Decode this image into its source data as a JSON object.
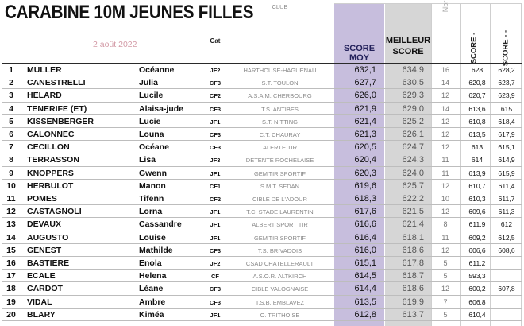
{
  "title": "CARABINE 10M JEUNES FILLES",
  "date": "2 août 2022",
  "headers": {
    "cat": "Cat",
    "club": "CLUB",
    "score_moy": "SCORE MOY",
    "meilleur_1": "MEILLEUR",
    "meilleur_2": "SCORE",
    "nbr": "Nbr",
    "score_minus": "SCORE -",
    "score_minus_minus": "SCORE - -"
  },
  "rows": [
    {
      "rank": "1",
      "nom": "MULLER",
      "prenom": "Océanne",
      "cat": "JF2",
      "club": "HARTHOUSE-HAGUENAU",
      "score_moy": "632,1",
      "best": "634,9",
      "nbr": "16",
      "s1": "628",
      "s2": "628,2"
    },
    {
      "rank": "2",
      "nom": "CANESTRELLI",
      "prenom": "Julia",
      "cat": "CF3",
      "club": "S.T. TOULON",
      "score_moy": "627,7",
      "best": "630,5",
      "nbr": "14",
      "s1": "620,8",
      "s2": "623,7"
    },
    {
      "rank": "3",
      "nom": "HELARD",
      "prenom": "Lucile",
      "cat": "CF2",
      "club": "A.S.A.M. CHERBOURG",
      "score_moy": "626,0",
      "best": "629,3",
      "nbr": "12",
      "s1": "620,7",
      "s2": "623,9"
    },
    {
      "rank": "4",
      "nom": "TENERIFE (ET)",
      "prenom": "Alaisa-jude",
      "cat": "CF3",
      "club": "T.S. ANTIBES",
      "score_moy": "621,9",
      "best": "629,0",
      "nbr": "14",
      "s1": "613,6",
      "s2": "615"
    },
    {
      "rank": "5",
      "nom": "KISSENBERGER",
      "prenom": "Lucie",
      "cat": "JF1",
      "club": "S.T. NITTING",
      "score_moy": "621,4",
      "best": "625,2",
      "nbr": "12",
      "s1": "610,8",
      "s2": "618,4"
    },
    {
      "rank": "6",
      "nom": "CALONNEC",
      "prenom": "Louna",
      "cat": "CF3",
      "club": "C.T. CHAURAY",
      "score_moy": "621,3",
      "best": "626,1",
      "nbr": "12",
      "s1": "613,5",
      "s2": "617,9"
    },
    {
      "rank": "7",
      "nom": "CECILLON",
      "prenom": "Océane",
      "cat": "CF3",
      "club": "ALERTE TIR",
      "score_moy": "620,5",
      "best": "624,7",
      "nbr": "12",
      "s1": "613",
      "s2": "615,1"
    },
    {
      "rank": "8",
      "nom": "TERRASSON",
      "prenom": "Lisa",
      "cat": "JF3",
      "club": "DETENTE ROCHELAISE",
      "score_moy": "620,4",
      "best": "624,3",
      "nbr": "11",
      "s1": "614",
      "s2": "614,9"
    },
    {
      "rank": "9",
      "nom": "KNOPPERS",
      "prenom": "Gwenn",
      "cat": "JF1",
      "club": "GEM'TIR SPORTIF",
      "score_moy": "620,3",
      "best": "624,0",
      "nbr": "11",
      "s1": "613,9",
      "s2": "615,9"
    },
    {
      "rank": "10",
      "nom": "HERBULOT",
      "prenom": "Manon",
      "cat": "CF1",
      "club": "S.M.T. SEDAN",
      "score_moy": "619,6",
      "best": "625,7",
      "nbr": "12",
      "s1": "610,7",
      "s2": "611,4"
    },
    {
      "rank": "11",
      "nom": "POMES",
      "prenom": "Tifenn",
      "cat": "CF2",
      "club": "CIBLE DE L'ADOUR",
      "score_moy": "618,3",
      "best": "622,2",
      "nbr": "10",
      "s1": "610,3",
      "s2": "611,7"
    },
    {
      "rank": "12",
      "nom": "CASTAGNOLI",
      "prenom": "Lorna",
      "cat": "JF1",
      "club": "T.C. STADE LAURENTIN",
      "score_moy": "617,6",
      "best": "621,5",
      "nbr": "12",
      "s1": "609,6",
      "s2": "611,3"
    },
    {
      "rank": "13",
      "nom": "DEVAUX",
      "prenom": "Cassandre",
      "cat": "JF1",
      "club": "ALBERT SPORT TIR",
      "score_moy": "616,6",
      "best": "621,4",
      "nbr": "8",
      "s1": "611,9",
      "s2": "612"
    },
    {
      "rank": "14",
      "nom": "AUGUSTO",
      "prenom": "Louise",
      "cat": "JF1",
      "club": "GEM'TIR SPORTIF",
      "score_moy": "616,4",
      "best": "618,1",
      "nbr": "11",
      "s1": "609,2",
      "s2": "612,5"
    },
    {
      "rank": "15",
      "nom": "GENEST",
      "prenom": "Mathilde",
      "cat": "CF3",
      "club": "T.S. BRIVADOIS",
      "score_moy": "616,0",
      "best": "618,6",
      "nbr": "12",
      "s1": "606,6",
      "s2": "608,6"
    },
    {
      "rank": "16",
      "nom": "BASTIERE",
      "prenom": "Enola",
      "cat": "JF2",
      "club": "CSAD CHATELLERAULT",
      "score_moy": "615,1",
      "best": "617,8",
      "nbr": "5",
      "s1": "611,2",
      "s2": ""
    },
    {
      "rank": "17",
      "nom": "ECALE",
      "prenom": "Helena",
      "cat": "CF",
      "club": "A.S.O.R. ALTKIRCH",
      "score_moy": "614,5",
      "best": "618,7",
      "nbr": "5",
      "s1": "593,3",
      "s2": ""
    },
    {
      "rank": "18",
      "nom": "CARDOT",
      "prenom": "Léane",
      "cat": "CF3",
      "club": "CIBLE VALOGNAISE",
      "score_moy": "614,4",
      "best": "618,6",
      "nbr": "12",
      "s1": "600,2",
      "s2": "607,8"
    },
    {
      "rank": "19",
      "nom": "VIDAL",
      "prenom": "Ambre",
      "cat": "CF3",
      "club": "T.S.B. EMBLAVEZ",
      "score_moy": "613,5",
      "best": "619,9",
      "nbr": "7",
      "s1": "606,8",
      "s2": ""
    },
    {
      "rank": "20",
      "nom": "BLARY",
      "prenom": "Kiméa",
      "cat": "JF1",
      "club": "O. TRITHOISE",
      "score_moy": "612,8",
      "best": "613,7",
      "nbr": "5",
      "s1": "610,4",
      "s2": ""
    }
  ]
}
